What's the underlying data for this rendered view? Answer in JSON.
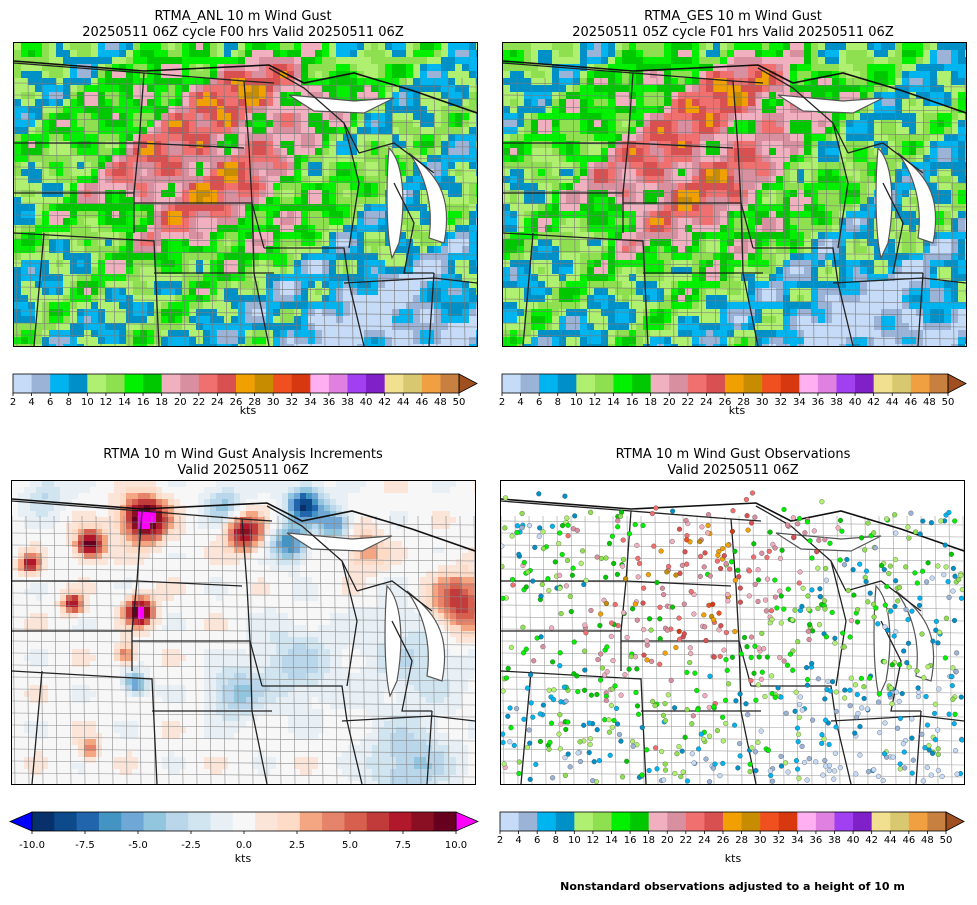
{
  "panels": {
    "anl": {
      "title_line1": "RTMA_ANL 10 m Wind Gust",
      "title_line2": "20250511 06Z cycle F00 hrs Valid 20250511 06Z"
    },
    "ges": {
      "title_line1": "RTMA_GES 10 m Wind Gust",
      "title_line2": "20250511 05Z cycle F01 hrs Valid 20250511 06Z"
    },
    "inc": {
      "title_line1": "RTMA 10 m Wind Gust Analysis Increments",
      "title_line2": "Valid 20250511 06Z"
    },
    "obs": {
      "title_line1": "RTMA 10 m Wind Gust Observations",
      "title_line2": "Valid 20250511 06Z"
    }
  },
  "gust_colorbar": {
    "label": "kts",
    "ticks": [
      "2",
      "4",
      "6",
      "8",
      "10",
      "12",
      "14",
      "16",
      "18",
      "20",
      "22",
      "24",
      "26",
      "28",
      "30",
      "32",
      "34",
      "36",
      "38",
      "40",
      "42",
      "44",
      "46",
      "48",
      "50"
    ],
    "colors": [
      "#c6dbf7",
      "#9cb3d8",
      "#00b4f0",
      "#0090c8",
      "#b0f070",
      "#8ee050",
      "#00f000",
      "#00c800",
      "#f0b0c0",
      "#d890a0",
      "#f07070",
      "#d85050",
      "#f0a000",
      "#c88c00",
      "#f05020",
      "#d83810",
      "#ffb0f0",
      "#e080e0",
      "#a040f0",
      "#8020c8",
      "#f0e090",
      "#d8c870",
      "#f0a040",
      "#c88040"
    ],
    "extend_color": "#a05020"
  },
  "inc_colorbar": {
    "label": "kts",
    "ticks": [
      "-10.0",
      "-7.5",
      "-5.0",
      "-2.5",
      "0.0",
      "2.5",
      "5.0",
      "7.5",
      "10.0"
    ],
    "under_color": "#0000ff",
    "over_color": "#ff00ff",
    "colors": [
      "#08306b",
      "#0d4a8c",
      "#2166ac",
      "#4393c3",
      "#6fa8d6",
      "#92c5de",
      "#b9d6ea",
      "#d1e5f0",
      "#e8f0f6",
      "#f7f7f7",
      "#fbe4d8",
      "#fddbc7",
      "#f4a582",
      "#e5846a",
      "#d6604d",
      "#c13b3b",
      "#b2182b",
      "#8b0f23",
      "#67001f"
    ]
  },
  "footnote": "Nonstandard observations adjusted to a height of 10 m"
}
